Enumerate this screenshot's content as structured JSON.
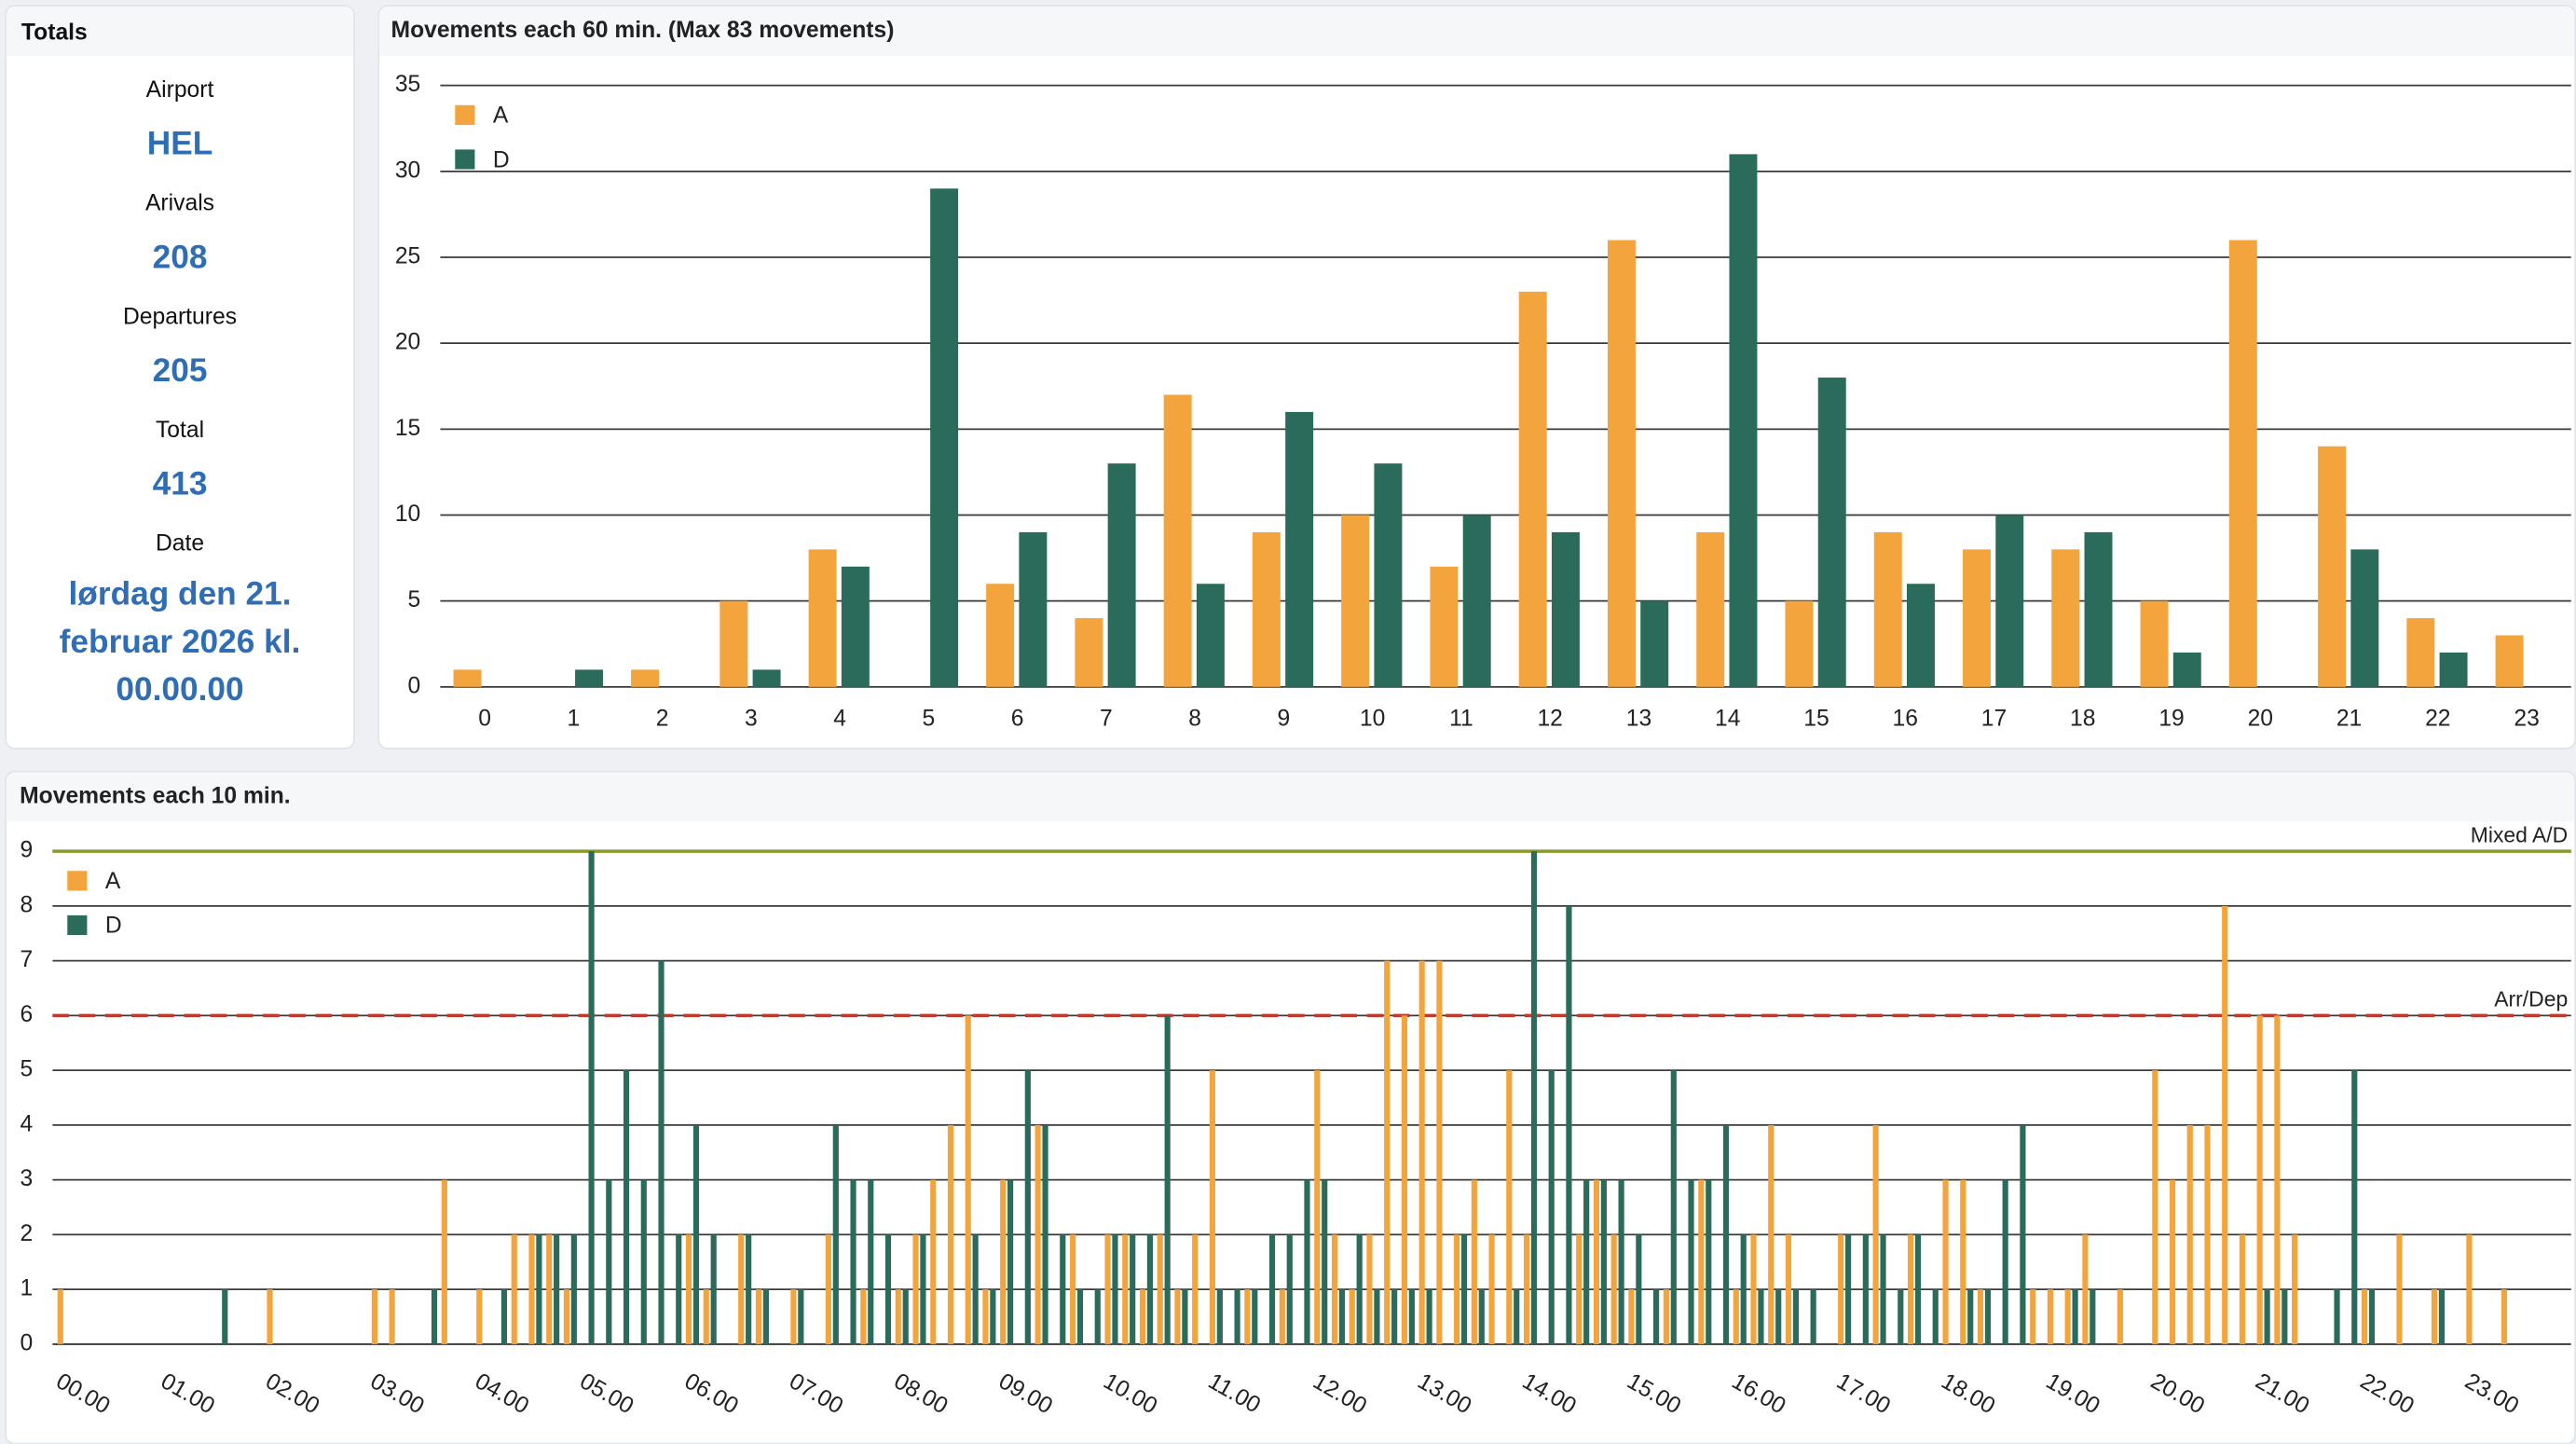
{
  "totals": {
    "title": "Totals",
    "items": [
      {
        "label": "Airport",
        "value": "HEL"
      },
      {
        "label": "Arivals",
        "value": 208
      },
      {
        "label": "Departures",
        "value": 205
      },
      {
        "label": "Total",
        "value": 413
      },
      {
        "label": "Date",
        "value": "lørdag den 21. februar 2026 kl. 00.00.00"
      }
    ]
  },
  "chart_data": [
    {
      "type": "bar",
      "title": "Movements each 60 min. (Max 83 movements)",
      "categories": [
        0,
        1,
        2,
        3,
        4,
        5,
        6,
        7,
        8,
        9,
        10,
        11,
        12,
        13,
        14,
        15,
        16,
        17,
        18,
        19,
        20,
        21,
        22,
        23
      ],
      "series": [
        {
          "name": "A",
          "color": "#f4a43c",
          "values": [
            1,
            0,
            1,
            5,
            8,
            0,
            6,
            4,
            17,
            9,
            10,
            7,
            23,
            26,
            9,
            5,
            9,
            8,
            8,
            5,
            26,
            14,
            4,
            3
          ]
        },
        {
          "name": "D",
          "color": "#2b6b5b",
          "values": [
            0,
            1,
            0,
            1,
            7,
            29,
            9,
            13,
            6,
            16,
            13,
            10,
            9,
            5,
            31,
            18,
            6,
            10,
            9,
            2,
            0,
            8,
            2,
            0
          ]
        }
      ],
      "ylim": [
        0,
        35
      ],
      "yticks": [
        0,
        5,
        10,
        15,
        20,
        25,
        30,
        35
      ],
      "grid": true,
      "legend": "top-left"
    },
    {
      "type": "bar",
      "title": "Movements each 10 min.",
      "categories": [
        "00.00",
        null,
        null,
        null,
        null,
        null,
        "01.00",
        null,
        null,
        null,
        null,
        null,
        "02.00",
        null,
        null,
        null,
        null,
        null,
        "03.00",
        null,
        null,
        null,
        null,
        null,
        "04.00",
        null,
        null,
        null,
        null,
        null,
        "05.00",
        null,
        null,
        null,
        null,
        null,
        "06.00",
        null,
        null,
        null,
        null,
        null,
        "07.00",
        null,
        null,
        null,
        null,
        null,
        "08.00",
        null,
        null,
        null,
        null,
        null,
        "09.00",
        null,
        null,
        null,
        null,
        null,
        "10.00",
        null,
        null,
        null,
        null,
        null,
        "11.00",
        null,
        null,
        null,
        null,
        null,
        "12.00",
        null,
        null,
        null,
        null,
        null,
        "13.00",
        null,
        null,
        null,
        null,
        null,
        "14.00",
        null,
        null,
        null,
        null,
        null,
        "15.00",
        null,
        null,
        null,
        null,
        null,
        "16.00",
        null,
        null,
        null,
        null,
        null,
        "17.00",
        null,
        null,
        null,
        null,
        null,
        "18.00",
        null,
        null,
        null,
        null,
        null,
        "19.00",
        null,
        null,
        null,
        null,
        null,
        "20.00",
        null,
        null,
        null,
        null,
        null,
        "21.00",
        null,
        null,
        null,
        null,
        null,
        "22.00",
        null,
        null,
        null,
        null,
        null,
        "23.00",
        null,
        null,
        null,
        null,
        null
      ],
      "series": [
        {
          "name": "A",
          "color": "#f4a43c",
          "values": [
            1,
            0,
            0,
            0,
            0,
            0,
            0,
            0,
            0,
            0,
            0,
            0,
            1,
            0,
            0,
            0,
            0,
            0,
            1,
            1,
            0,
            0,
            3,
            0,
            1,
            0,
            2,
            2,
            2,
            1,
            0,
            0,
            0,
            0,
            0,
            0,
            2,
            1,
            0,
            2,
            1,
            0,
            1,
            0,
            2,
            0,
            1,
            0,
            1,
            2,
            3,
            4,
            6,
            1,
            3,
            0,
            4,
            0,
            2,
            0,
            2,
            2,
            1,
            2,
            1,
            2,
            5,
            0,
            1,
            0,
            1,
            0,
            5,
            2,
            1,
            2,
            7,
            6,
            7,
            7,
            2,
            3,
            2,
            5,
            2,
            0,
            0,
            2,
            3,
            2,
            1,
            0,
            1,
            0,
            3,
            0,
            1,
            2,
            4,
            2,
            0,
            0,
            2,
            0,
            4,
            0,
            2,
            0,
            3,
            3,
            1,
            0,
            0,
            1,
            1,
            1,
            2,
            0,
            1,
            0,
            5,
            3,
            4,
            4,
            8,
            2,
            6,
            6,
            2,
            0,
            0,
            0,
            1,
            0,
            2,
            0,
            1,
            0,
            2,
            0,
            1,
            0,
            0,
            0
          ]
        },
        {
          "name": "D",
          "color": "#2b6b5b",
          "values": [
            0,
            0,
            0,
            0,
            0,
            0,
            0,
            0,
            0,
            1,
            0,
            0,
            0,
            0,
            0,
            0,
            0,
            0,
            0,
            0,
            0,
            1,
            0,
            0,
            0,
            1,
            0,
            2,
            2,
            2,
            9,
            3,
            5,
            3,
            7,
            2,
            4,
            2,
            0,
            2,
            1,
            0,
            1,
            0,
            4,
            3,
            3,
            2,
            1,
            2,
            0,
            0,
            2,
            1,
            3,
            5,
            4,
            2,
            1,
            1,
            2,
            2,
            2,
            6,
            1,
            0,
            1,
            1,
            1,
            2,
            2,
            3,
            3,
            1,
            2,
            1,
            1,
            1,
            1,
            0,
            2,
            1,
            0,
            1,
            9,
            5,
            8,
            3,
            3,
            3,
            2,
            1,
            5,
            3,
            3,
            4,
            2,
            1,
            1,
            1,
            1,
            0,
            2,
            2,
            2,
            1,
            2,
            1,
            0,
            1,
            1,
            3,
            4,
            0,
            0,
            1,
            1,
            0,
            0,
            0,
            0,
            0,
            0,
            0,
            0,
            0,
            1,
            1,
            0,
            0,
            1,
            5,
            1,
            0,
            0,
            0,
            1,
            0,
            0,
            0,
            0,
            0,
            0,
            0
          ]
        }
      ],
      "ylim": [
        0,
        9
      ],
      "yticks": [
        0,
        1,
        2,
        3,
        4,
        5,
        6,
        7,
        8,
        9
      ],
      "grid": true,
      "legend": "top-left",
      "reference_lines": [
        {
          "value": 9,
          "label": "Mixed A/D",
          "color": "#8a9a2a",
          "style": "solid"
        },
        {
          "value": 6,
          "label": "Arr/Dep",
          "color": "#c0392b",
          "style": "dashed"
        }
      ]
    }
  ]
}
